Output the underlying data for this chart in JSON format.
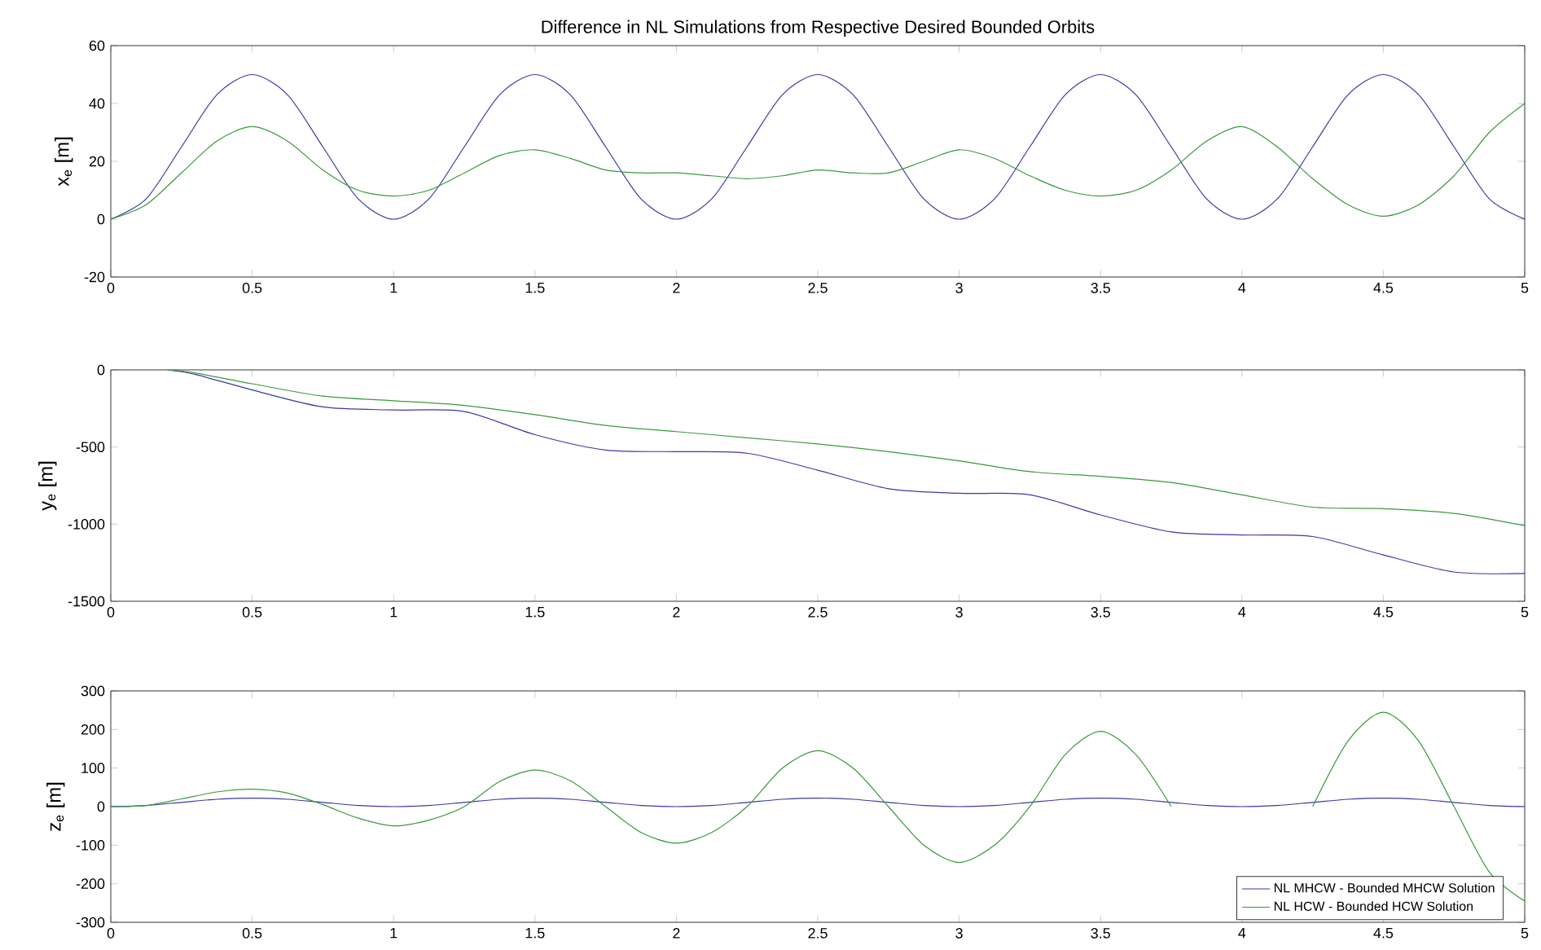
{
  "chart_data": [
    {
      "type": "line",
      "title": "Difference in NL Simulations from Respective Desired Bounded Orbits",
      "ylabel": "x$_{e}$ [m]",
      "xlim": [
        0,
        5
      ],
      "ylim": [
        -20,
        60
      ],
      "xticks": [
        0,
        0.5,
        1,
        1.5,
        2,
        2.5,
        3,
        3.5,
        4,
        4.5,
        5
      ],
      "yticks": [
        -20,
        0,
        20,
        40,
        60
      ],
      "grid": false,
      "legend": false,
      "x": [
        0,
        0.125,
        0.25,
        0.375,
        0.5,
        0.625,
        0.75,
        0.875,
        1,
        1.125,
        1.25,
        1.375,
        1.5,
        1.625,
        1.75,
        1.875,
        2,
        2.125,
        2.25,
        2.375,
        2.5,
        2.625,
        2.75,
        2.875,
        3,
        3.125,
        3.25,
        3.375,
        3.5,
        3.625,
        3.75,
        3.875,
        4,
        4.125,
        4.25,
        4.375,
        4.5,
        4.625,
        4.75,
        4.875,
        5
      ],
      "series": [
        {
          "color": "#3a3aa0",
          "values": [
            0,
            7,
            25,
            43,
            50,
            43,
            25,
            7,
            0,
            7,
            25,
            43,
            50,
            43,
            25,
            7,
            0,
            7,
            25,
            43,
            50,
            43,
            25,
            7,
            0,
            7,
            25,
            43,
            50,
            43,
            25,
            7,
            0,
            7,
            25,
            43,
            50,
            43,
            25,
            7,
            0
          ]
        },
        {
          "color": "#3a9a3a",
          "values": [
            0,
            5,
            16,
            27,
            32,
            27,
            17,
            10,
            8,
            10,
            16,
            22,
            24,
            21,
            17,
            16,
            16,
            15,
            14,
            15,
            17,
            16,
            16,
            20,
            24,
            21,
            15,
            10,
            8,
            10,
            17,
            27,
            32,
            25,
            14,
            5,
            1,
            5,
            15,
            30,
            40
          ]
        }
      ]
    },
    {
      "type": "line",
      "ylabel": "y$_{e}$ [m]",
      "xlim": [
        0,
        5
      ],
      "ylim": [
        -1500,
        0
      ],
      "xticks": [
        0,
        0.5,
        1,
        1.5,
        2,
        2.5,
        3,
        3.5,
        4,
        4.5,
        5
      ],
      "yticks": [
        -1500,
        -1000,
        -500,
        0
      ],
      "grid": false,
      "legend": false,
      "x": [
        0.2,
        0.3,
        0.5,
        0.75,
        1,
        1.25,
        1.5,
        1.75,
        2,
        2.25,
        2.5,
        2.75,
        3,
        3.25,
        3.5,
        3.75,
        4,
        4.25,
        4.5,
        4.75,
        5
      ],
      "series": [
        {
          "color": "#3a3aa0",
          "values": [
            0,
            -30,
            -130,
            -240,
            -260,
            -270,
            -420,
            -520,
            -530,
            -540,
            -650,
            -770,
            -800,
            -810,
            -940,
            -1050,
            -1070,
            -1080,
            -1200,
            -1310,
            -1320
          ]
        },
        {
          "color": "#3a9a3a",
          "values": [
            0,
            -20,
            -90,
            -170,
            -200,
            -230,
            -290,
            -360,
            -400,
            -440,
            -480,
            -530,
            -590,
            -660,
            -690,
            -730,
            -810,
            -890,
            -900,
            -930,
            -1010
          ]
        }
      ]
    },
    {
      "type": "line",
      "ylabel": "z$_{e}$ [m]",
      "xlim": [
        0,
        5
      ],
      "ylim": [
        -300,
        300
      ],
      "xticks": [
        0,
        0.5,
        1,
        1.5,
        2,
        2.5,
        3,
        3.5,
        4,
        4.5,
        5
      ],
      "yticks": [
        -300,
        -200,
        -100,
        0,
        100,
        200,
        300
      ],
      "grid": false,
      "legend": "bottom right",
      "x": [
        0,
        0.125,
        0.25,
        0.375,
        0.5,
        0.625,
        0.75,
        0.875,
        1,
        1.125,
        1.25,
        1.375,
        1.5,
        1.625,
        1.75,
        1.875,
        2,
        2.125,
        2.25,
        2.375,
        2.5,
        2.625,
        2.75,
        2.875,
        3,
        3.125,
        3.25,
        3.375,
        3.5,
        3.625,
        3.75,
        3.875,
        4,
        4.125,
        4.25,
        4.375,
        4.5,
        4.625,
        4.75,
        4.875,
        5
      ],
      "series": [
        {
          "name": "NL MHCW - Bounded MHCW Solution",
          "color": "#3a3aa0",
          "values": [
            0,
            3,
            11,
            19,
            22,
            19,
            11,
            3,
            0,
            3,
            11,
            19,
            22,
            19,
            11,
            3,
            0,
            3,
            11,
            19,
            22,
            19,
            11,
            3,
            0,
            3,
            11,
            19,
            22,
            19,
            11,
            3,
            0,
            3,
            11,
            19,
            22,
            19,
            11,
            3,
            0
          ]
        },
        {
          "name": "NL HCW - Bounded HCW Solution",
          "color": "#3a9a3a",
          "values": [
            0,
            3,
            20,
            38,
            45,
            35,
            5,
            -30,
            -50,
            -35,
            0,
            65,
            95,
            67,
            0,
            -67,
            -95,
            -67,
            0,
            100,
            145,
            100,
            0,
            -100,
            -145,
            -100,
            0,
            135,
            195,
            135,
            0,
            null,
            null,
            null,
            0,
            170,
            245,
            170,
            0,
            -170,
            -245
          ]
        }
      ]
    }
  ]
}
